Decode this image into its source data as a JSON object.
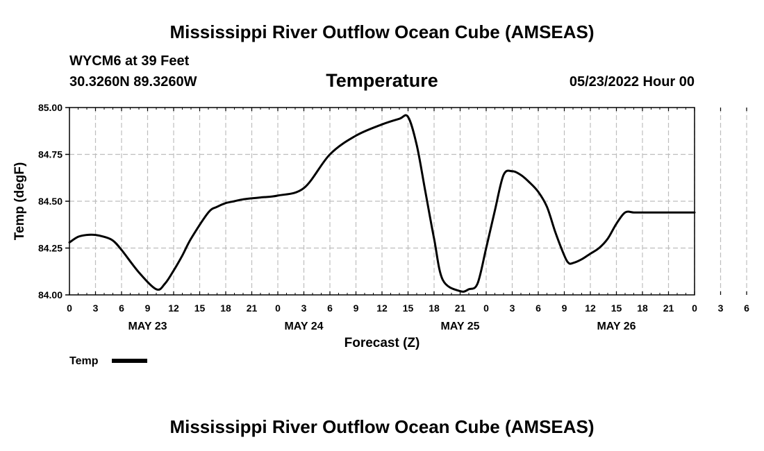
{
  "header": {
    "title": "Mississippi River Outflow Ocean Cube (AMSEAS)",
    "station": "WYCM6 at 39 Feet",
    "coords": "30.3260N  89.3260W",
    "datetime": "05/23/2022 Hour 00",
    "footer_title": "Mississippi River Outflow Ocean Cube (AMSEAS)"
  },
  "colors": {
    "line": "#000000",
    "grid": "#bdbdbd",
    "axis": "#000000"
  },
  "chart_data": {
    "type": "line",
    "title": "Temperature",
    "xlabel": "Forecast (Z)",
    "ylabel": "Temp (degF)",
    "ylim": [
      84.0,
      85.0
    ],
    "xlim": [
      0,
      72
    ],
    "grid": true,
    "y_ticks": [
      "84.00",
      "84.25",
      "84.50",
      "84.75",
      "85.00"
    ],
    "y_tick_values": [
      84.0,
      84.25,
      84.5,
      84.75,
      85.0
    ],
    "x_ticks": [
      "0",
      "3",
      "6",
      "9",
      "12",
      "15",
      "18",
      "21",
      "0",
      "3",
      "6",
      "9",
      "12",
      "15",
      "18",
      "21",
      "0",
      "3",
      "6",
      "9",
      "12",
      "15",
      "18",
      "21",
      "0",
      "3",
      "6",
      "9",
      "12",
      "15",
      "18",
      "21",
      "0"
    ],
    "day_labels": [
      {
        "label": "MAY 23",
        "hour": 9
      },
      {
        "label": "MAY 24",
        "hour": 27
      },
      {
        "label": "MAY 25",
        "hour": 45
      },
      {
        "label": "MAY 26",
        "hour": 63
      }
    ],
    "legend": [
      {
        "name": "Temp",
        "position": "bottom-left"
      }
    ],
    "series": [
      {
        "name": "Temp",
        "x": [
          0,
          1,
          2,
          3,
          4,
          5,
          6,
          8,
          10,
          11,
          12,
          13,
          14,
          16,
          17,
          18,
          19,
          20,
          22,
          24,
          27,
          30,
          33,
          36,
          38,
          39,
          40,
          41,
          42,
          43,
          45,
          46,
          47,
          48,
          49,
          50,
          51,
          52,
          53,
          54,
          55,
          56,
          57,
          57.5,
          58,
          59,
          60,
          61,
          62,
          63,
          64,
          65,
          66,
          67,
          68,
          69,
          70,
          71,
          72
        ],
        "y": [
          84.28,
          84.31,
          84.32,
          84.32,
          84.31,
          84.29,
          84.24,
          84.12,
          84.03,
          84.06,
          84.13,
          84.21,
          84.3,
          84.44,
          84.47,
          84.49,
          84.5,
          84.51,
          84.52,
          84.53,
          84.57,
          84.75,
          84.85,
          84.91,
          84.94,
          84.95,
          84.8,
          84.55,
          84.3,
          84.08,
          84.02,
          84.03,
          84.06,
          84.25,
          84.45,
          84.64,
          84.66,
          84.64,
          84.6,
          84.55,
          84.47,
          84.33,
          84.21,
          84.17,
          84.17,
          84.19,
          84.22,
          84.25,
          84.3,
          84.38,
          84.44,
          84.44,
          84.44,
          84.44,
          84.44,
          84.44,
          84.44,
          84.44,
          84.44
        ]
      }
    ]
  }
}
